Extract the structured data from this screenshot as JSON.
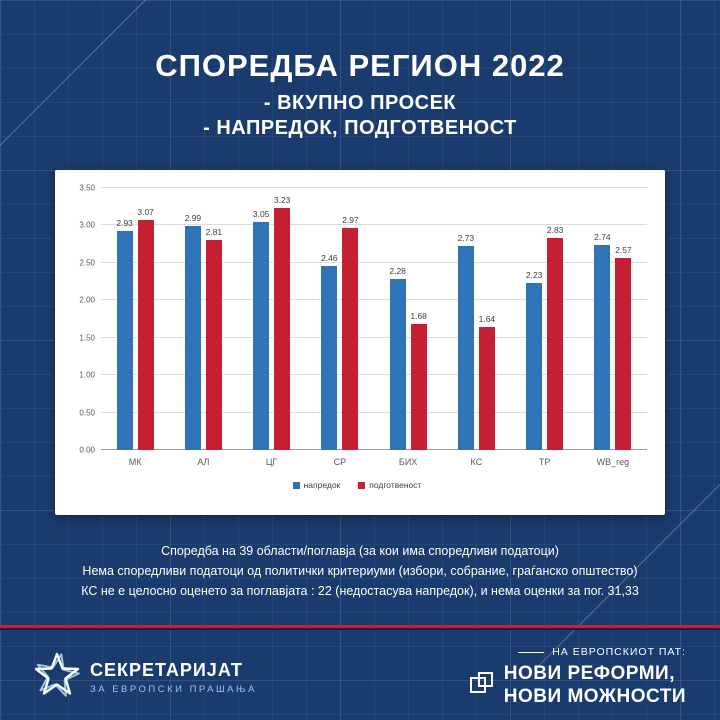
{
  "header": {
    "title": "СПОРЕДБА РЕГИОН 2022",
    "subtitle1": "- ВКУПНО ПРОСЕК",
    "subtitle2": "- НАПРЕДОК, ПОДГОТВЕНОСТ"
  },
  "chart_data": {
    "type": "bar",
    "categories": [
      "МК",
      "АЛ",
      "ЦГ",
      "СР",
      "БИХ",
      "КС",
      "ТР",
      "WB_reg"
    ],
    "series": [
      {
        "name": "напредок",
        "color": "#2E74B6",
        "values": [
          2.93,
          2.99,
          3.05,
          2.46,
          2.28,
          2.73,
          2.23,
          2.74
        ]
      },
      {
        "name": "подготвеност",
        "color": "#C42032",
        "values": [
          3.07,
          2.81,
          3.23,
          2.97,
          1.68,
          1.64,
          2.83,
          2.57
        ]
      }
    ],
    "title": "",
    "xlabel": "",
    "ylabel": "",
    "ylim": [
      0,
      3.5
    ],
    "ytick_step": 0.5,
    "grid": true,
    "legend_position": "bottom"
  },
  "notes": {
    "line1": "Споредба на 39 области/поглавја (за кои има споредливи податоци)",
    "line2": "Нема споредливи податоци од политички критериуми (избори, собрание, граѓанско општество)",
    "line3": "КС не е целосно оценето за поглавјата : 22 (недостасува напредок), и нема оценки за пог. 31,33"
  },
  "footer": {
    "logo_title": "СЕКРЕТАРИЈАТ",
    "logo_subtitle": "ЗА ЕВРОПСКИ ПРАШАЊА",
    "tagline_small": "НА ЕВРОПСКИОТ ПАТ:",
    "tagline_line1": "НОВИ РЕФОРМИ,",
    "tagline_line2": "НОВИ МОЖНОСТИ"
  },
  "colors": {
    "background": "#1A3B6E",
    "bar_blue": "#2E74B6",
    "bar_red": "#C42032",
    "accent_red": "#C8203C"
  }
}
